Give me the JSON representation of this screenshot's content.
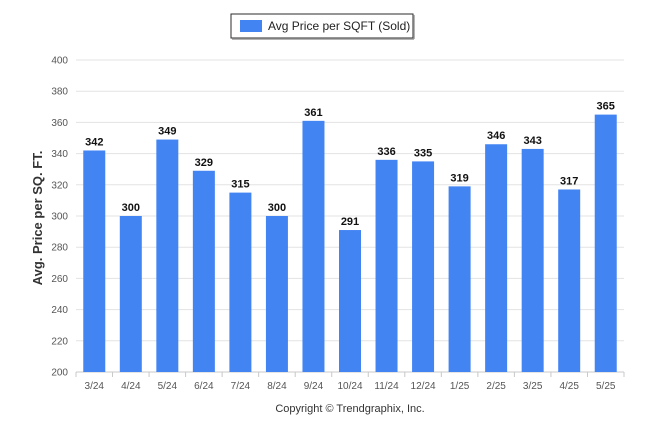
{
  "colors": {
    "bar": "#4384f3",
    "grid": "#e3e3e3",
    "axis": "#c8c8c8"
  },
  "chart_data": {
    "type": "bar",
    "categories": [
      "3/24",
      "4/24",
      "5/24",
      "6/24",
      "7/24",
      "8/24",
      "9/24",
      "10/24",
      "11/24",
      "12/24",
      "1/25",
      "2/25",
      "3/25",
      "4/25",
      "5/25"
    ],
    "series": [
      {
        "name": "Avg Price per SQFT (Sold)",
        "values": [
          342,
          300,
          349,
          329,
          315,
          300,
          361,
          291,
          336,
          335,
          319,
          346,
          343,
          317,
          365
        ]
      }
    ],
    "ylabel": "Avg. Price per SQ. FT.",
    "xlabel": "",
    "ylim": [
      200,
      400
    ],
    "yticks": [
      200,
      220,
      240,
      260,
      280,
      300,
      320,
      340,
      360,
      380,
      400
    ],
    "grid": true,
    "legend_position": "top-center",
    "data_labels": true
  },
  "footer": {
    "copyright": "Copyright © Trendgraphix, Inc."
  }
}
